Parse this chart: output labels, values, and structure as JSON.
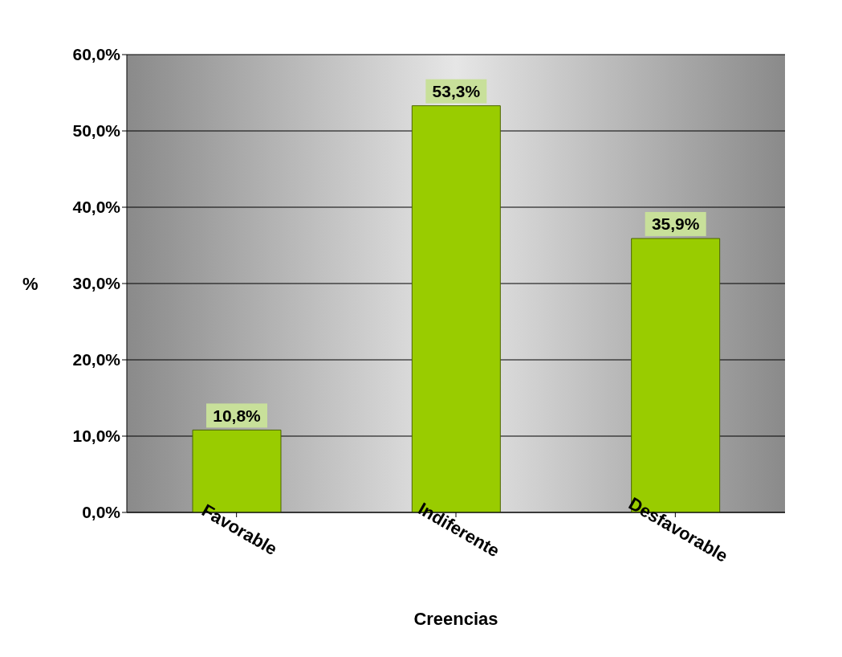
{
  "chart_data": {
    "type": "bar",
    "xlabel": "Creencias",
    "ylabel": "%",
    "categories": [
      "Favorable",
      "Indiferente",
      "Desfavorable"
    ],
    "values": [
      10.8,
      53.3,
      35.9
    ],
    "color": "#99cc00",
    "value_labels": [
      "10,8%",
      "53,3%",
      "35,9%"
    ],
    "ylim": [
      0,
      60
    ],
    "yticks": [
      {
        "value": 0,
        "label": "0,0%"
      },
      {
        "value": 10,
        "label": "10,0%"
      },
      {
        "value": 20,
        "label": "20,0%"
      },
      {
        "value": 30,
        "label": "30,0%"
      },
      {
        "value": 40,
        "label": "40,0%"
      },
      {
        "value": 50,
        "label": "50,0%"
      },
      {
        "value": 60,
        "label": "60,0%"
      }
    ],
    "grid": "y"
  }
}
